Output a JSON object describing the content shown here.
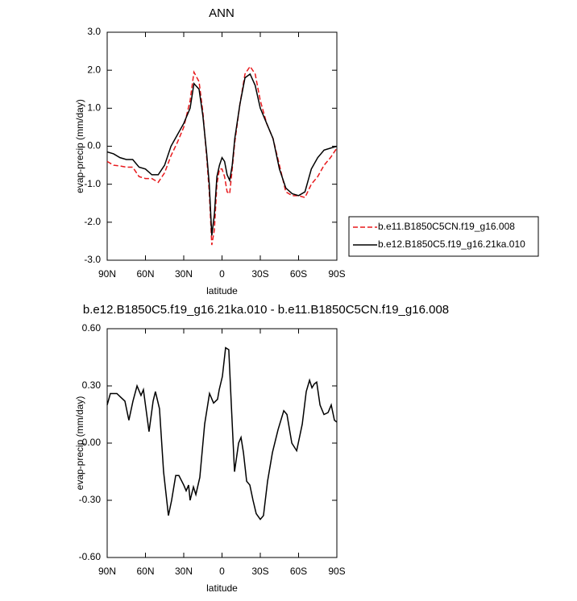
{
  "chart_data": [
    {
      "type": "line",
      "title": "ANN",
      "xlabel": "latitude",
      "ylabel": "evap-precip (mm/day)",
      "x": [
        90,
        85,
        80,
        75,
        70,
        65,
        60,
        55,
        50,
        45,
        40,
        35,
        30,
        25,
        22,
        18,
        15,
        12,
        10,
        8,
        6,
        4,
        2,
        0,
        -2,
        -4,
        -6,
        -8,
        -10,
        -14,
        -18,
        -22,
        -26,
        -30,
        -35,
        -40,
        -45,
        -50,
        -55,
        -60,
        -65,
        -70,
        -75,
        -80,
        -85,
        -90
      ],
      "series": [
        {
          "name": "b.e11.B1850C5CN.f19_g16.008",
          "color": "#e8191c",
          "dash": "dashed",
          "values": [
            -0.4,
            -0.5,
            -0.52,
            -0.55,
            -0.55,
            -0.8,
            -0.85,
            -0.85,
            -0.95,
            -0.7,
            -0.25,
            0.1,
            0.5,
            1.2,
            1.95,
            1.7,
            0.9,
            -0.3,
            -1.2,
            -2.6,
            -2.2,
            -1.0,
            -0.6,
            -0.6,
            -0.8,
            -1.2,
            -1.25,
            -0.6,
            0.1,
            1.1,
            1.9,
            2.1,
            1.9,
            1.2,
            0.6,
            0.2,
            -0.5,
            -1.2,
            -1.3,
            -1.3,
            -1.35,
            -1.0,
            -0.8,
            -0.5,
            -0.3,
            -0.05
          ]
        },
        {
          "name": "b.e12.B1850C5.f19_g16.21ka.010",
          "color": "#000000",
          "dash": "solid",
          "values": [
            -0.15,
            -0.2,
            -0.3,
            -0.35,
            -0.35,
            -0.55,
            -0.6,
            -0.75,
            -0.75,
            -0.5,
            0.0,
            0.3,
            0.6,
            1.0,
            1.65,
            1.5,
            0.8,
            -0.2,
            -1.0,
            -2.35,
            -1.8,
            -0.8,
            -0.5,
            -0.3,
            -0.4,
            -0.75,
            -0.9,
            -0.5,
            0.2,
            1.1,
            1.8,
            1.9,
            1.6,
            1.0,
            0.6,
            0.2,
            -0.6,
            -1.1,
            -1.25,
            -1.3,
            -1.2,
            -0.6,
            -0.3,
            -0.1,
            -0.05,
            0.0
          ]
        }
      ],
      "xlim": [
        90,
        -90
      ],
      "xticks": [
        {
          "value": 90,
          "label": "90N"
        },
        {
          "value": 60,
          "label": "60N"
        },
        {
          "value": 30,
          "label": "30N"
        },
        0,
        {
          "value": -30,
          "label": "30S"
        },
        {
          "value": -60,
          "label": "60S"
        },
        {
          "value": -90,
          "label": "90S"
        }
      ],
      "ylim": [
        -3,
        3
      ],
      "yticks": [
        {
          "value": -3,
          "label": "-3.0"
        },
        {
          "value": -2,
          "label": "-2.0"
        },
        {
          "value": -1,
          "label": "-1.0"
        },
        {
          "value": 0,
          "label": "0.0"
        },
        {
          "value": 1,
          "label": "1.0"
        },
        {
          "value": 2,
          "label": "2.0"
        },
        {
          "value": 3,
          "label": "3.0"
        }
      ],
      "legend": "right"
    },
    {
      "type": "line",
      "title": "b.e12.B1850C5.f19_g16.21ka.010 - b.e11.B1850C5CN.f19_g16.008",
      "xlabel": "latitude",
      "ylabel": "evap-precip (mm/day)",
      "x": [
        90,
        87.5,
        82.4,
        79.3,
        76.1,
        73,
        69.8,
        66.6,
        63.5,
        61.6,
        57.2,
        54,
        52.2,
        49,
        45.8,
        42,
        39.5,
        36.3,
        33.8,
        30,
        28.1,
        26.2,
        25,
        22.4,
        20.5,
        17.4,
        13.6,
        9.8,
        6.6,
        3.5,
        2.2,
        -0.3,
        -2.8,
        -5.3,
        -7.3,
        -9.8,
        -13,
        -14.9,
        -16.8,
        -19.3,
        -21.8,
        -24.3,
        -26.8,
        -30,
        -32.5,
        -35.7,
        -39.5,
        -43.9,
        -48.4,
        -50.9,
        -54.7,
        -58.5,
        -62.9,
        -66,
        -68.6,
        -70.5,
        -72.3,
        -74.2,
        -76.8,
        -79.9,
        -83.1,
        -85.6,
        -88.1,
        -90
      ],
      "values": [
        0.2,
        0.26,
        0.26,
        0.24,
        0.22,
        0.12,
        0.22,
        0.3,
        0.25,
        0.28,
        0.06,
        0.22,
        0.27,
        0.18,
        -0.15,
        -0.38,
        -0.3,
        -0.17,
        -0.17,
        -0.22,
        -0.25,
        -0.22,
        -0.3,
        -0.23,
        -0.27,
        -0.18,
        0.1,
        0.26,
        0.21,
        0.23,
        0.28,
        0.35,
        0.5,
        0.49,
        0.2,
        -0.15,
        0.0,
        0.03,
        -0.05,
        -0.2,
        -0.22,
        -0.3,
        -0.37,
        -0.4,
        -0.38,
        -0.2,
        -0.05,
        0.07,
        0.17,
        0.15,
        0.0,
        -0.04,
        0.1,
        0.27,
        0.33,
        0.29,
        0.31,
        0.32,
        0.2,
        0.15,
        0.16,
        0.2,
        0.12,
        0.11
      ],
      "color": "#000000",
      "xlim": [
        90,
        -90
      ],
      "xticks": [
        {
          "value": 90,
          "label": "90N"
        },
        {
          "value": 60,
          "label": "60N"
        },
        {
          "value": 30,
          "label": "30N"
        },
        0,
        {
          "value": -30,
          "label": "30S"
        },
        {
          "value": -60,
          "label": "60S"
        },
        {
          "value": -90,
          "label": "90S"
        }
      ],
      "ylim": [
        -0.6,
        0.6
      ],
      "yticks": [
        {
          "value": -0.6,
          "label": "-0.60"
        },
        {
          "value": -0.3,
          "label": "-0.30"
        },
        {
          "value": 0,
          "label": "0.00"
        },
        {
          "value": 0.3,
          "label": "0.30"
        },
        {
          "value": 0.6,
          "label": "0.60"
        }
      ]
    }
  ]
}
